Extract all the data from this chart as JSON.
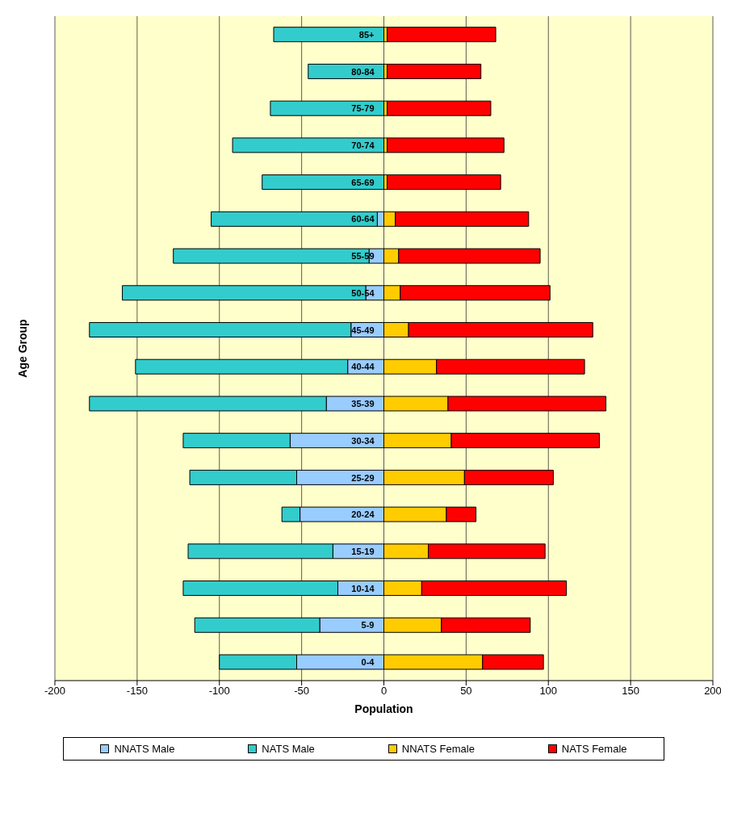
{
  "chart_data": {
    "type": "bar",
    "orientation": "horizontal",
    "stacked": true,
    "xlabel": "Population",
    "ylabel": "Age Group",
    "categories": [
      "85+",
      "80-84",
      "75-79",
      "70-74",
      "65-69",
      "60-64",
      "55-59",
      "50-54",
      "45-49",
      "40-44",
      "35-39",
      "30-34",
      "25-29",
      "20-24",
      "15-19",
      "10-14",
      "5-9",
      "0-4"
    ],
    "series": [
      {
        "name": "NNATS Male",
        "color": "#99ccff",
        "values": [
          null,
          null,
          null,
          null,
          null,
          -4,
          -9,
          -11,
          -20,
          -22,
          -35,
          -57,
          -53,
          -51,
          -31,
          -28,
          -39,
          -53
        ]
      },
      {
        "name": "NATS Male",
        "color": "#33cccc",
        "values": [
          -67,
          -46,
          -69,
          -92,
          -74,
          -101,
          -119,
          -148,
          -159,
          -129,
          -144,
          -65,
          -65,
          -11,
          -88,
          -94,
          -76,
          -47
        ]
      },
      {
        "name": "NNATS Female",
        "color": "#ffcc00",
        "values": [
          2,
          2,
          2,
          2,
          2,
          7,
          9,
          10,
          15,
          32,
          39,
          41,
          49,
          38,
          27,
          23,
          35,
          60
        ]
      },
      {
        "name": "NATS Female",
        "color": "#ff0000",
        "values": [
          66,
          57,
          63,
          71,
          69,
          81,
          86,
          91,
          112,
          90,
          96,
          90,
          54,
          18,
          71,
          88,
          54,
          37
        ]
      }
    ],
    "xlim": [
      -200,
      200
    ],
    "xticks": [
      -200,
      -150,
      -100,
      -50,
      0,
      50,
      100,
      150,
      200
    ],
    "grid": "x",
    "legend": "bottom"
  }
}
